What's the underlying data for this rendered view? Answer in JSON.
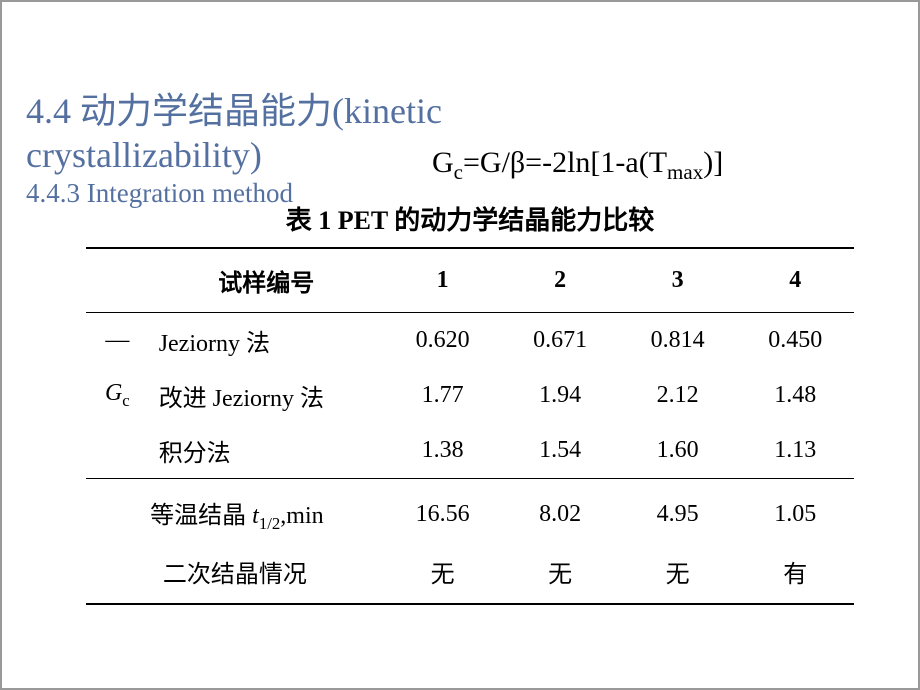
{
  "heading": {
    "line1": "4.4 动力学结晶能力(kinetic",
    "line2": "crystallizability)",
    "subtitle": "4.4.3 Integration method"
  },
  "equation": {
    "lhs_base": "G",
    "lhs_sub": "c",
    "rhs_pre": "=G/β=-2ln[1-a(T",
    "rhs_sub": "max",
    "rhs_post": ")]"
  },
  "table": {
    "title": "表 1    PET 的动力学结晶能力比较",
    "sample_label": "试样编号",
    "columns": [
      "1",
      "2",
      "3",
      "4"
    ],
    "gc_spanner_base": "G",
    "gc_spanner_sub": "c",
    "methods": [
      {
        "label": "Jeziorny 法",
        "values": [
          "0.620",
          "0.671",
          "0.814",
          "0.450"
        ]
      },
      {
        "label": "改进 Jeziorny 法",
        "values": [
          "1.77",
          "1.94",
          "2.12",
          "1.48"
        ]
      },
      {
        "label": "积分法",
        "values": [
          "1.38",
          "1.54",
          "1.60",
          "1.13"
        ]
      }
    ],
    "iso_row": {
      "label_pre": "等温结晶 ",
      "label_t": "t",
      "label_sub": "1/2",
      "label_post": ",min",
      "values": [
        "16.56",
        "8.02",
        "4.95",
        "1.05"
      ]
    },
    "sec_row": {
      "label": "二次结晶情况",
      "values": [
        "无",
        "无",
        "无",
        "有"
      ]
    }
  },
  "style": {
    "heading_color": "#5470a0"
  }
}
